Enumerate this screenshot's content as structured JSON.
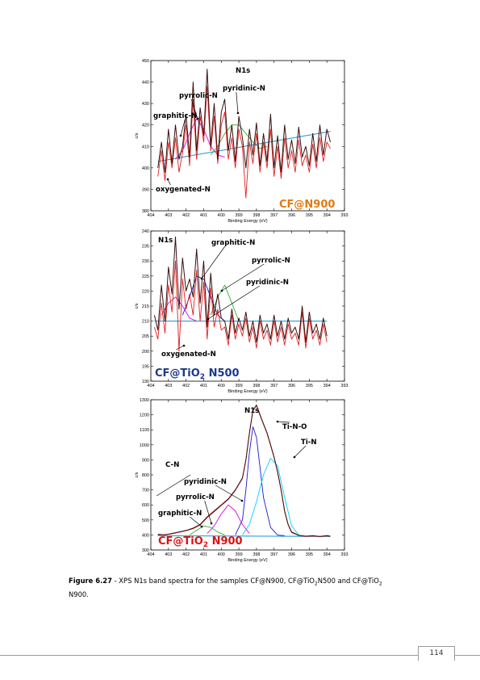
{
  "colors": {
    "black_trace": "#3a0f0f",
    "red_trace": "#e02020",
    "baseline": "#2aa0d8",
    "blue_fit": "#1a1ad0",
    "cyan_fit": "#00d0ff",
    "magenta_fit": "#e000e0",
    "green_fit": "#30b030",
    "orange_label": "#e07a12",
    "navy_label": "#1c3a8a",
    "red_label": "#e01010"
  },
  "figure": {
    "caption_label": "Figure 6.27",
    "caption_text_a": " - XPS N1s band spectra for the samples CF@N900, CF@TiO",
    "caption_sub_a": "2",
    "caption_text_b": "N500 and CF@TiO",
    "caption_sub_b": "2",
    "caption_text_c": "N900."
  },
  "page_number": "114",
  "chart_data": [
    {
      "type": "line",
      "title": "N1s",
      "xlabel": "Binding Energy (eV)",
      "ylabel": "c/s",
      "xlim": [
        404,
        393
      ],
      "ylim": [
        380,
        450
      ],
      "x_ticks": [
        "404",
        "403",
        "402",
        "401",
        "400",
        "399",
        "398",
        "397",
        "396",
        "395",
        "394",
        "393"
      ],
      "y_ticks": [
        "380",
        "390",
        "400",
        "410",
        "420",
        "430",
        "440",
        "450"
      ],
      "sample_label_main": "CF@N900",
      "sample_label_sub": "",
      "sample_label_tail": "",
      "annotations": [
        "pyrrolic-N",
        "pyridinic-N",
        "graphitic-N",
        "oxygenated-N"
      ],
      "series": [
        {
          "name": "",
          "role": "raw",
          "color_key": "black_trace",
          "x": [
            403.6,
            403.4,
            403.2,
            403.0,
            402.8,
            402.6,
            402.4,
            402.2,
            402.0,
            401.8,
            401.6,
            401.4,
            401.2,
            401.0,
            400.8,
            400.6,
            400.4,
            400.2,
            400.0,
            399.8,
            399.6,
            399.4,
            399.2,
            399.0,
            398.8,
            398.6,
            398.4,
            398.2,
            398.0,
            397.8,
            397.6,
            397.4,
            397.2,
            397.0,
            396.8,
            396.6,
            396.4,
            396.2,
            396.0,
            395.8,
            395.6,
            395.4,
            395.2,
            395.0,
            394.8,
            394.6,
            394.4,
            394.2,
            394.0,
            393.8
          ],
          "y": [
            400,
            412,
            398,
            418,
            402,
            420,
            404,
            410,
            425,
            405,
            440,
            408,
            428,
            415,
            446,
            410,
            430,
            404,
            426,
            432,
            408,
            420,
            403,
            424,
            414,
            400,
            418,
            406,
            421,
            401,
            416,
            403,
            425,
            400,
            415,
            398,
            420,
            404,
            413,
            402,
            419,
            405,
            410,
            401,
            416,
            403,
            420,
            406,
            418,
            412
          ]
        },
        {
          "name": "",
          "role": "fit-sum",
          "color_key": "red_trace",
          "x": [
            403.6,
            403.4,
            403.2,
            403.0,
            402.8,
            402.6,
            402.4,
            402.2,
            402.0,
            401.8,
            401.6,
            401.4,
            401.2,
            401.0,
            400.8,
            400.6,
            400.4,
            400.2,
            400.0,
            399.8,
            399.6,
            399.4,
            399.2,
            399.0,
            398.8,
            398.6,
            398.4,
            398.2,
            398.0,
            397.8,
            397.6,
            397.4,
            397.2,
            397.0,
            396.8,
            396.6,
            396.4,
            396.2,
            396.0,
            395.8,
            395.6,
            395.4,
            395.2,
            395.0,
            394.8,
            394.6,
            394.4,
            394.2,
            394.0,
            393.8
          ],
          "y": [
            396,
            408,
            394,
            412,
            400,
            414,
            398,
            407,
            420,
            401,
            432,
            404,
            424,
            412,
            438,
            408,
            424,
            402,
            420,
            426,
            404,
            414,
            400,
            418,
            410,
            386,
            412,
            402,
            416,
            398,
            412,
            400,
            418,
            396,
            410,
            395,
            414,
            400,
            408,
            398,
            413,
            401,
            406,
            398,
            411,
            400,
            414,
            403,
            412,
            409
          ]
        },
        {
          "name": "",
          "role": "baseline",
          "color_key": "baseline",
          "x": [
            403.6,
            393.8
          ],
          "y": [
            403,
            417
          ]
        },
        {
          "name": "",
          "role": "component",
          "color_key": "magenta_fit",
          "x": [
            402.6,
            402.2,
            401.8,
            401.4,
            401.0,
            400.6,
            400.2,
            399.8
          ],
          "y": [
            404,
            408,
            416,
            423,
            418,
            410,
            406,
            405
          ]
        },
        {
          "name": "",
          "role": "component",
          "color_key": "green_fit",
          "x": [
            400.6,
            400.2,
            399.8,
            399.4,
            399.0,
            398.6,
            398.2,
            397.8,
            397.4
          ],
          "y": [
            406,
            410,
            416,
            420,
            420,
            416,
            412,
            409,
            410
          ]
        }
      ]
    },
    {
      "type": "line",
      "title": "N1s",
      "xlabel": "Binding Energy (eV)",
      "ylabel": "c/s",
      "xlim": [
        404,
        393
      ],
      "ylim": [
        190,
        240
      ],
      "x_ticks": [
        "404",
        "403",
        "402",
        "401",
        "400",
        "399",
        "398",
        "397",
        "396",
        "395",
        "394",
        "393"
      ],
      "y_ticks": [
        "190",
        "195",
        "200",
        "205",
        "210",
        "215",
        "220",
        "225",
        "230",
        "235",
        "240"
      ],
      "sample_label_main": "CF@TiO",
      "sample_label_sub": "2",
      "sample_label_tail": " N500",
      "annotations": [
        "graphitic-N",
        "pyrrolic-N",
        "pyridinic-N",
        "oxygenated-N"
      ],
      "series": [
        {
          "name": "",
          "role": "raw",
          "color_key": "black_trace",
          "x": [
            403.8,
            403.6,
            403.4,
            403.2,
            403.0,
            402.8,
            402.6,
            402.4,
            402.2,
            402.0,
            401.8,
            401.6,
            401.4,
            401.2,
            401.0,
            400.8,
            400.6,
            400.4,
            400.2,
            400.0,
            399.8,
            399.6,
            399.4,
            399.2,
            399.0,
            398.8,
            398.6,
            398.4,
            398.2,
            398.0,
            397.8,
            397.6,
            397.4,
            397.2,
            397.0,
            396.8,
            396.6,
            396.4,
            396.2,
            396.0,
            395.8,
            395.6,
            395.4,
            395.2,
            395.0,
            394.8,
            394.6,
            394.4,
            394.2,
            394.0
          ],
          "y": [
            212,
            207,
            222,
            210,
            228,
            219,
            238,
            214,
            231,
            220,
            224,
            218,
            234,
            216,
            230,
            208,
            226,
            212,
            219,
            211,
            210,
            204,
            214,
            206,
            211,
            207,
            213,
            205,
            210,
            203,
            212,
            206,
            209,
            204,
            212,
            205,
            210,
            204,
            211,
            206,
            208,
            204,
            215,
            203,
            213,
            206,
            209,
            204,
            211,
            205
          ]
        },
        {
          "name": "",
          "role": "fit-sum",
          "color_key": "red_trace",
          "x": [
            403.8,
            403.6,
            403.4,
            403.2,
            403.0,
            402.8,
            402.6,
            402.4,
            402.2,
            402.0,
            401.8,
            401.6,
            401.4,
            401.2,
            401.0,
            400.8,
            400.6,
            400.4,
            400.2,
            400.0,
            399.8,
            399.6,
            399.4,
            399.2,
            399.0,
            398.8,
            398.6,
            398.4,
            398.2,
            398.0,
            397.8,
            397.6,
            397.4,
            397.2,
            397.0,
            396.8,
            396.6,
            396.4,
            396.2,
            396.0,
            395.8,
            395.6,
            395.4,
            395.2,
            395.0,
            394.8,
            394.6,
            394.4,
            394.2,
            394.0
          ],
          "y": [
            208,
            204,
            216,
            206,
            222,
            213,
            230,
            200,
            224,
            214,
            219,
            212,
            227,
            210,
            223,
            204,
            221,
            208,
            214,
            207,
            208,
            202,
            212,
            204,
            209,
            205,
            211,
            203,
            208,
            201,
            210,
            204,
            207,
            202,
            210,
            203,
            208,
            202,
            209,
            204,
            206,
            202,
            213,
            201,
            211,
            204,
            207,
            202,
            209,
            203
          ]
        },
        {
          "name": "",
          "role": "baseline",
          "color_key": "baseline",
          "x": [
            403.8,
            394.0
          ],
          "y": [
            210,
            210
          ]
        },
        {
          "name": "",
          "role": "component",
          "color_key": "blue_fit",
          "x": [
            402.2,
            401.8,
            401.4,
            401.0,
            400.6,
            400.2,
            399.8
          ],
          "y": [
            212,
            218,
            225,
            224,
            218,
            212,
            210
          ]
        },
        {
          "name": "",
          "role": "component",
          "color_key": "green_fit",
          "x": [
            400.6,
            400.2,
            399.8,
            399.4,
            399.0
          ],
          "y": [
            212,
            218,
            222,
            216,
            210
          ]
        },
        {
          "name": "",
          "role": "component",
          "color_key": "magenta_fit",
          "x": [
            403.4,
            403.0,
            402.6,
            402.2,
            401.8,
            401.4
          ],
          "y": [
            212,
            216,
            218,
            215,
            211,
            210
          ]
        }
      ]
    },
    {
      "type": "line",
      "title": "N1s",
      "xlabel": "Binding Energy (eV)",
      "ylabel": "c/s",
      "xlim": [
        404,
        393
      ],
      "ylim": [
        300,
        1300
      ],
      "x_ticks": [
        "404",
        "403",
        "402",
        "401",
        "400",
        "399",
        "398",
        "397",
        "396",
        "395",
        "394",
        "393"
      ],
      "y_ticks": [
        "300",
        "400",
        "500",
        "600",
        "700",
        "800",
        "900",
        "1000",
        "1100",
        "1200",
        "1300"
      ],
      "sample_label_main": "CF@TiO",
      "sample_label_sub": "2",
      "sample_label_tail": " N900",
      "annotations": [
        "Ti-N-O",
        "Ti-N",
        "C-N",
        "pyridinic-N",
        "pyrrolic-N",
        "graphitic-N"
      ],
      "series": [
        {
          "name": "",
          "role": "raw",
          "color_key": "black_trace",
          "x": [
            403.6,
            403.2,
            402.8,
            402.4,
            402.0,
            401.6,
            401.2,
            400.8,
            400.4,
            400.0,
            399.6,
            399.2,
            398.8,
            398.6,
            398.4,
            398.2,
            398.0,
            397.8,
            397.6,
            397.4,
            397.2,
            397.0,
            396.8,
            396.6,
            396.4,
            396.2,
            396.0,
            395.6,
            395.2,
            394.8,
            394.4,
            394.0,
            393.8
          ],
          "y": [
            405,
            400,
            410,
            420,
            430,
            445,
            470,
            520,
            560,
            600,
            640,
            700,
            780,
            900,
            1080,
            1230,
            1265,
            1200,
            1140,
            1080,
            1000,
            920,
            820,
            700,
            560,
            470,
            420,
            398,
            392,
            395,
            390,
            396,
            392
          ]
        },
        {
          "name": "",
          "role": "fit-sum",
          "color_key": "red_trace",
          "x": [
            403.6,
            403.2,
            402.8,
            402.4,
            402.0,
            401.6,
            401.2,
            400.8,
            400.4,
            400.0,
            399.6,
            399.2,
            398.8,
            398.6,
            398.4,
            398.2,
            398.0,
            397.8,
            397.6,
            397.4,
            397.2,
            397.0,
            396.8,
            396.6,
            396.4,
            396.2,
            396.0,
            395.6,
            395.2,
            394.8,
            394.4,
            394.0,
            393.8
          ],
          "y": [
            400,
            402,
            408,
            418,
            428,
            442,
            466,
            515,
            555,
            596,
            636,
            696,
            776,
            896,
            1076,
            1226,
            1262,
            1196,
            1136,
            1076,
            996,
            916,
            816,
            696,
            556,
            466,
            416,
            396,
            390,
            393,
            388,
            394,
            390
          ]
        },
        {
          "name": "",
          "role": "component",
          "color_key": "blue_fit",
          "x": [
            399.2,
            398.8,
            398.6,
            398.4,
            398.2,
            398.0,
            397.8,
            397.6,
            397.2,
            396.8,
            396.4
          ],
          "y": [
            400,
            500,
            700,
            950,
            1120,
            1050,
            850,
            650,
            450,
            400,
            395
          ]
        },
        {
          "name": "",
          "role": "component",
          "color_key": "cyan_fit",
          "x": [
            398.8,
            398.4,
            398.0,
            397.6,
            397.2,
            396.8,
            396.4,
            396.0,
            395.6
          ],
          "y": [
            400,
            470,
            620,
            800,
            910,
            860,
            650,
            460,
            400
          ]
        },
        {
          "name": "",
          "role": "component",
          "color_key": "magenta_fit",
          "x": [
            400.8,
            400.4,
            400.0,
            399.6,
            399.2,
            398.8,
            398.4
          ],
          "y": [
            410,
            460,
            540,
            600,
            560,
            470,
            410
          ]
        },
        {
          "name": "",
          "role": "component",
          "color_key": "green_fit",
          "x": [
            401.8,
            401.4,
            401.0,
            400.6,
            400.2,
            399.8
          ],
          "y": [
            400,
            430,
            460,
            450,
            420,
            400
          ]
        },
        {
          "name": "",
          "role": "baseline",
          "color_key": "baseline",
          "x": [
            403.6,
            393.8
          ],
          "y": [
            395,
            390
          ]
        }
      ]
    }
  ]
}
